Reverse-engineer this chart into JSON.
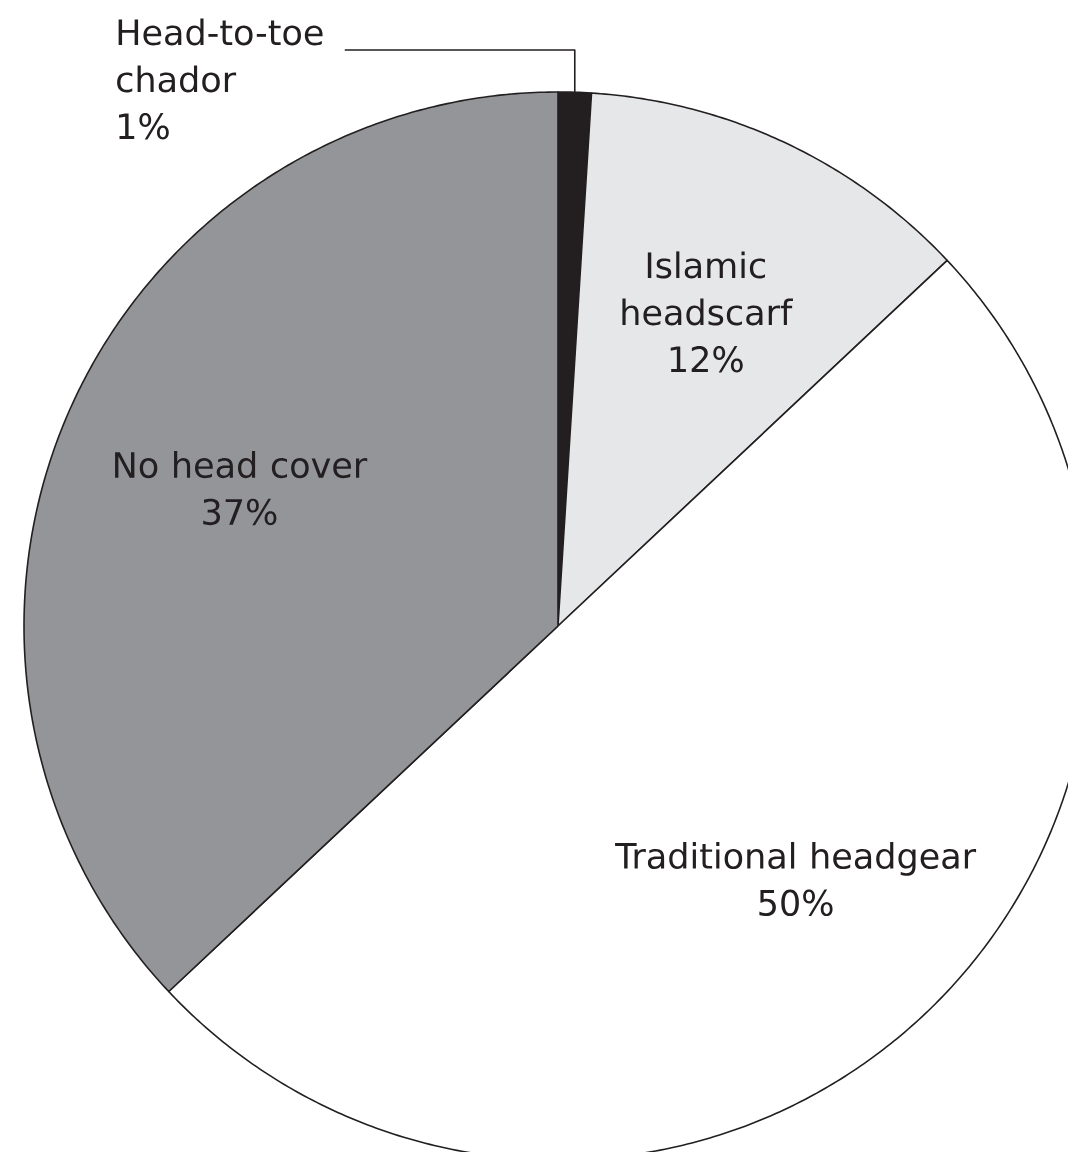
{
  "chart_data": {
    "type": "pie",
    "categories": [
      "Head-to-toe chador",
      "Islamic headscarf",
      "Traditional headgear",
      "No head cover"
    ],
    "values": [
      1,
      12,
      50,
      37
    ],
    "colors": [
      "#231f20",
      "#e6e7e8",
      "#ffffff",
      "#939598"
    ],
    "value_labels": [
      "1%",
      "12%",
      "50%",
      "37%"
    ]
  }
}
